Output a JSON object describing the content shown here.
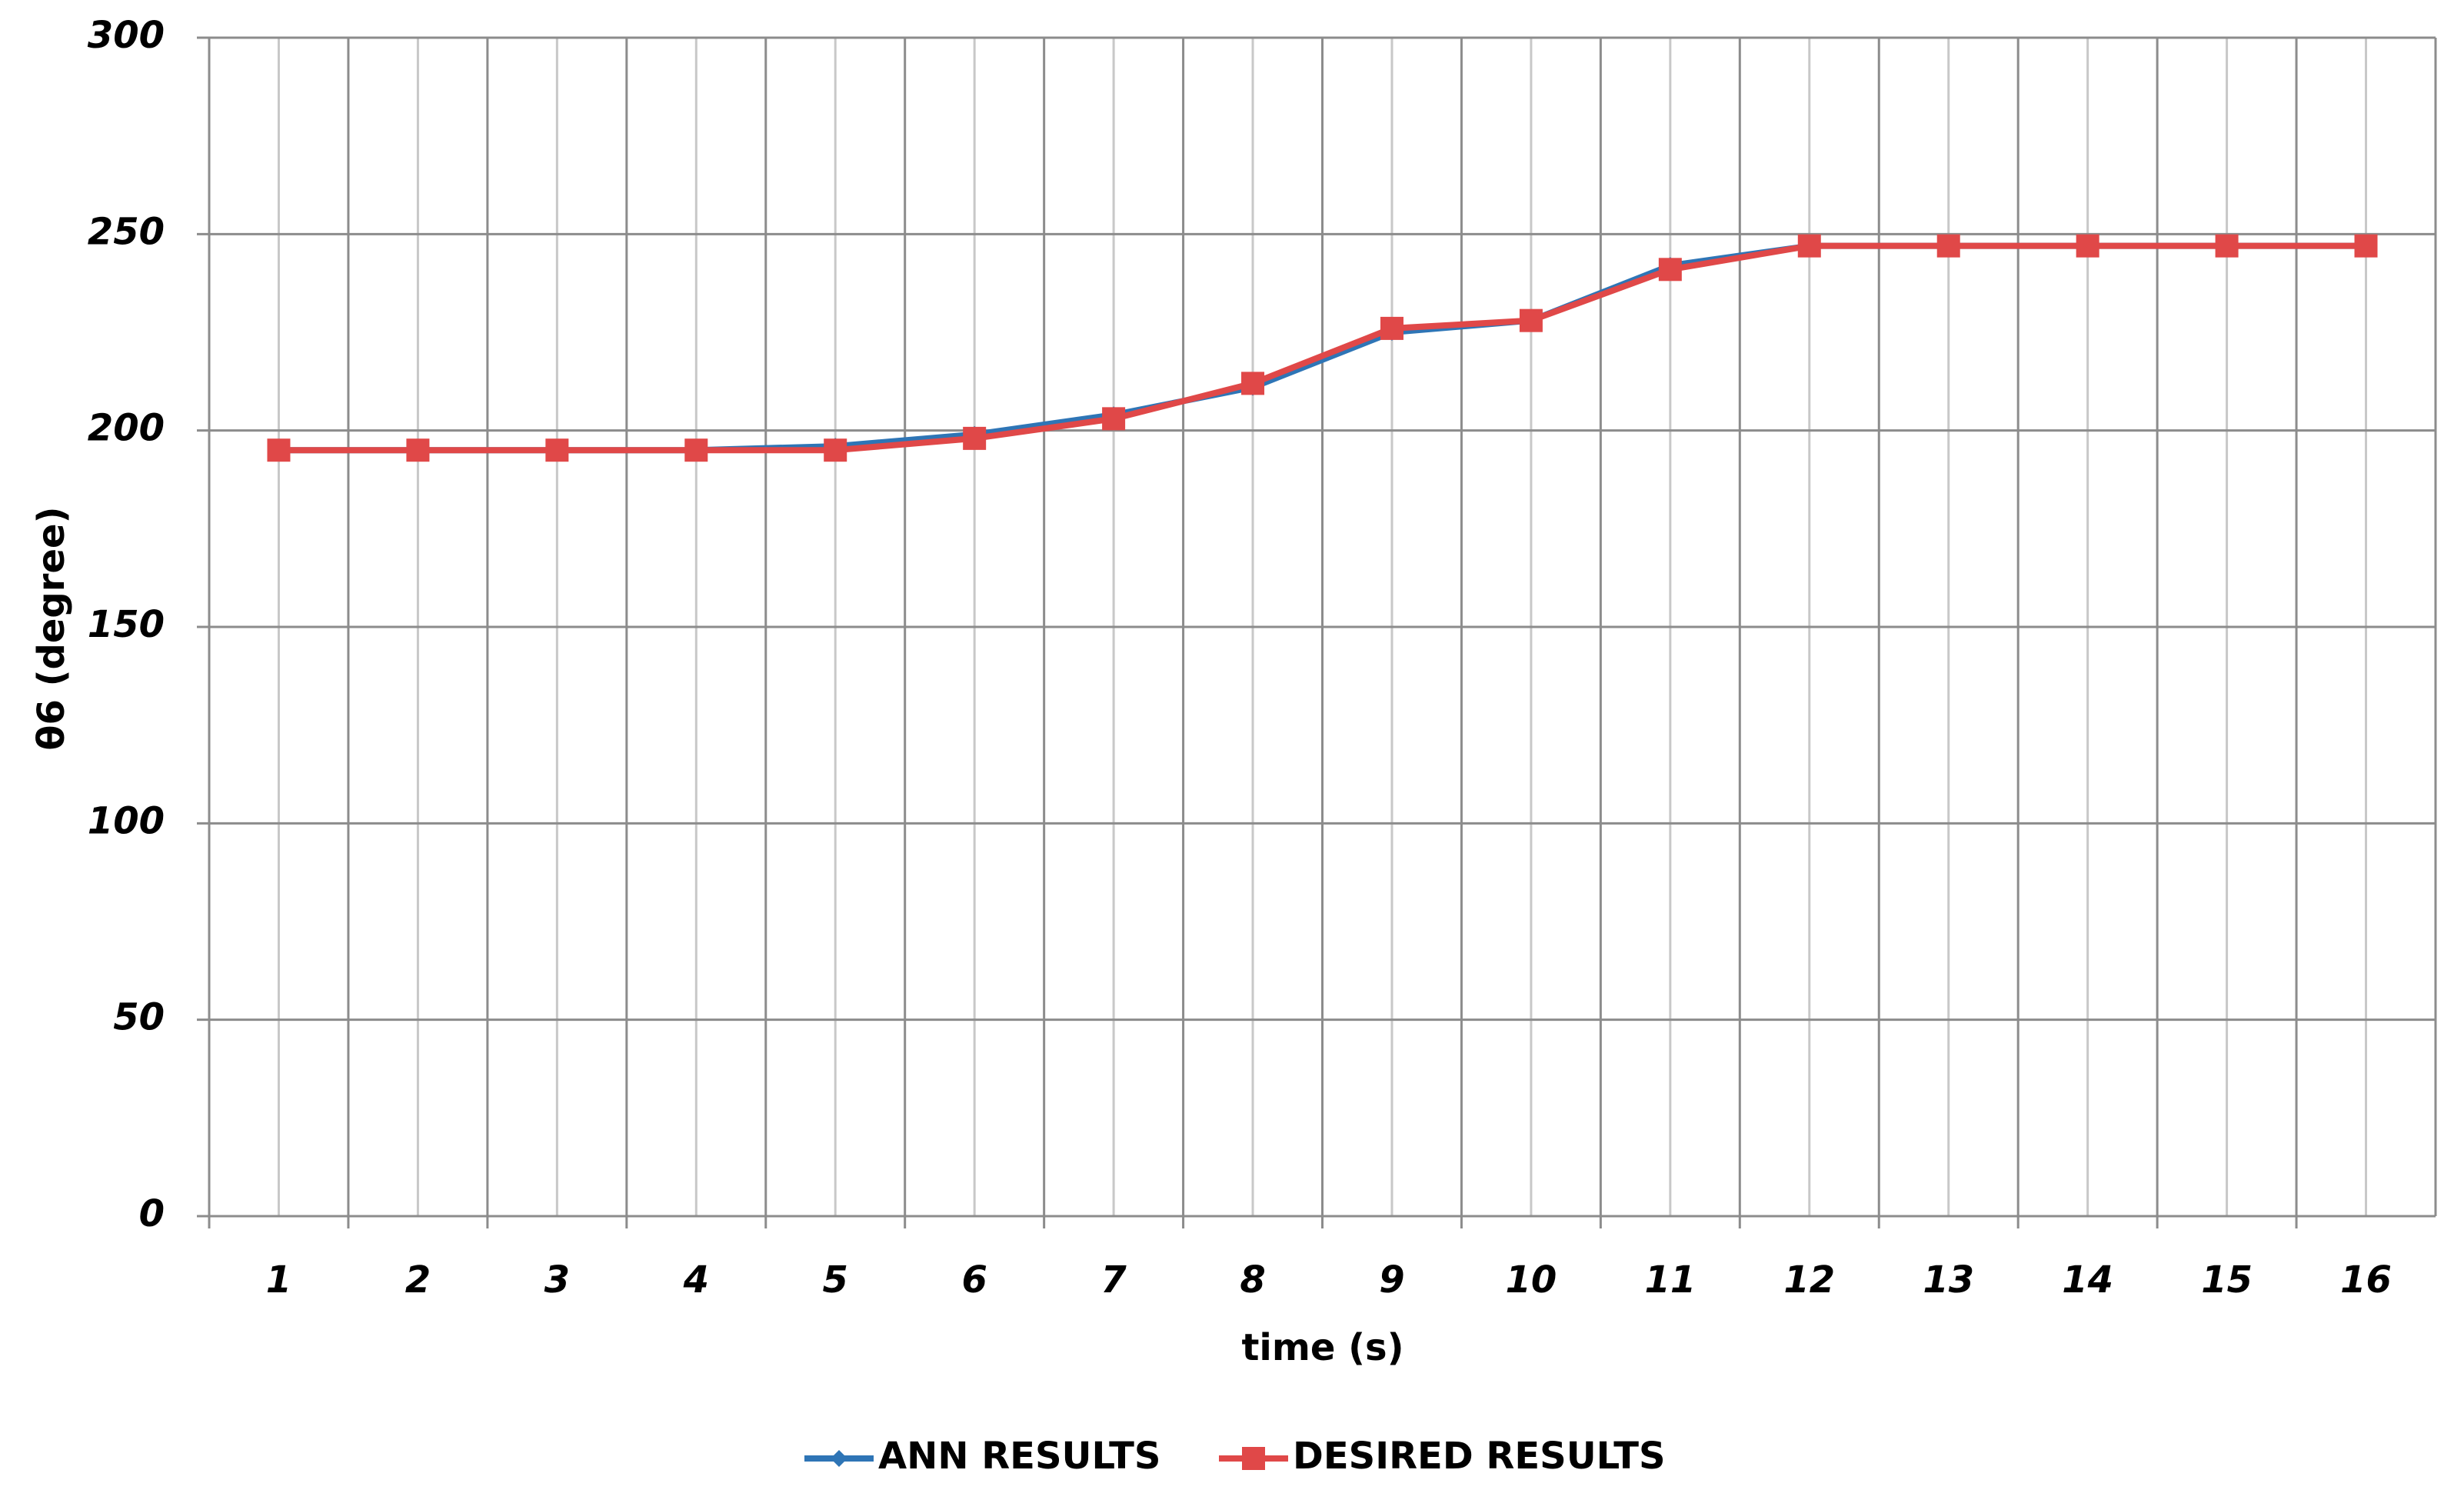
{
  "chart_data": {
    "type": "line",
    "x_label": "time (s)",
    "y_label": "θ6 (degree)",
    "categories": [
      "1",
      "2",
      "3",
      "4",
      "5",
      "6",
      "7",
      "8",
      "9",
      "10",
      "11",
      "12",
      "13",
      "14",
      "15",
      "16"
    ],
    "series": [
      {
        "name": "ANN RESULTS",
        "color": "#2e75b6",
        "marker": "diamond",
        "values": [
          195,
          195,
          195,
          195,
          196,
          199,
          204,
          211,
          225,
          228,
          242,
          247,
          247,
          247,
          247,
          247
        ]
      },
      {
        "name": "DESIRED RESULTS",
        "color": "#e04848",
        "marker": "square",
        "values": [
          195,
          195,
          195,
          195,
          195,
          198,
          203,
          212,
          226,
          228,
          241,
          247,
          247,
          247,
          247,
          247
        ]
      }
    ],
    "ylim": [
      0,
      300
    ],
    "yticks": [
      0,
      50,
      100,
      150,
      200,
      250,
      300
    ],
    "grid": true,
    "legend": "bottom"
  }
}
